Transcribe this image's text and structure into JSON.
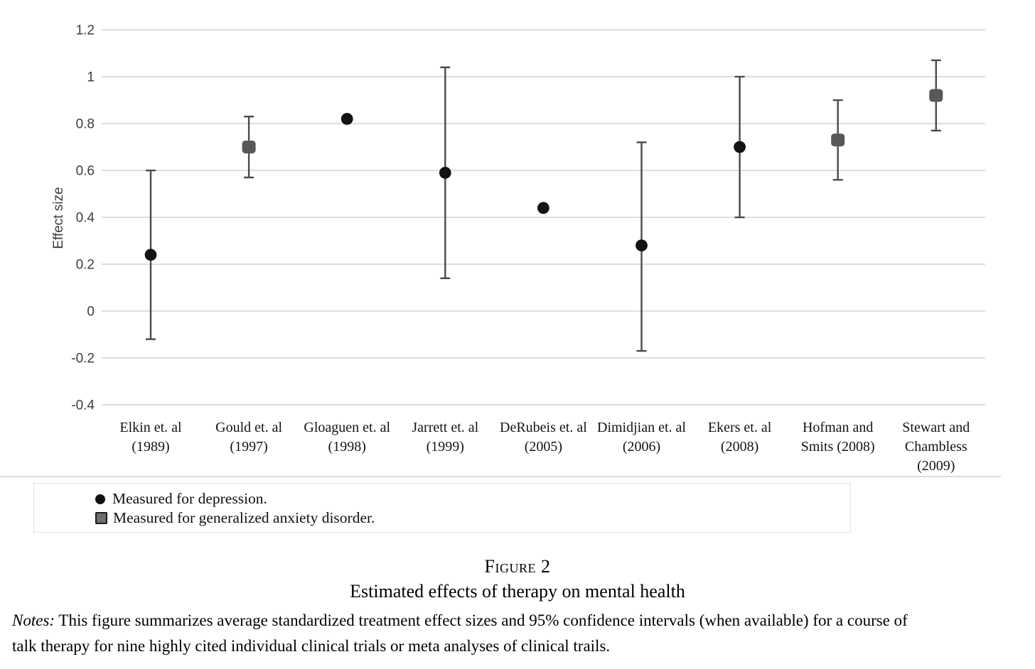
{
  "chart_data": {
    "type": "scatter",
    "title": "",
    "xlabel": "",
    "ylabel": "Effect size",
    "ylim": [
      -0.4,
      1.2
    ],
    "yticks": [
      1.2,
      1,
      0.8,
      0.6,
      0.4,
      0.2,
      0,
      -0.2,
      -0.4
    ],
    "ytick_labels": [
      "1.2",
      "1",
      "0.8",
      "0.6",
      "0.4",
      "0.2",
      "0",
      "-0.2",
      "-0.4"
    ],
    "grid": true,
    "legend_position": "bottom-left box",
    "points": [
      {
        "label_lines": [
          "Elkin et. al",
          "(1989)"
        ],
        "value": 0.24,
        "ci_low": -0.12,
        "ci_high": 0.6,
        "marker": "circle",
        "group": "depression"
      },
      {
        "label_lines": [
          "Gould et. al",
          "(1997)"
        ],
        "value": 0.7,
        "ci_low": 0.57,
        "ci_high": 0.83,
        "marker": "square",
        "group": "generalized anxiety disorder"
      },
      {
        "label_lines": [
          "Gloaguen et. al",
          "(1998)"
        ],
        "value": 0.82,
        "ci_low": null,
        "ci_high": null,
        "marker": "circle",
        "group": "depression"
      },
      {
        "label_lines": [
          "Jarrett et. al",
          "(1999)"
        ],
        "value": 0.59,
        "ci_low": 0.14,
        "ci_high": 1.04,
        "marker": "circle",
        "group": "depression"
      },
      {
        "label_lines": [
          "DeRubeis et. al",
          "(2005)"
        ],
        "value": 0.44,
        "ci_low": null,
        "ci_high": null,
        "marker": "circle",
        "group": "depression"
      },
      {
        "label_lines": [
          "Dimidjian et. al",
          "(2006)"
        ],
        "value": 0.28,
        "ci_low": -0.17,
        "ci_high": 0.72,
        "marker": "circle",
        "group": "depression"
      },
      {
        "label_lines": [
          "Ekers et. al",
          "(2008)"
        ],
        "value": 0.7,
        "ci_low": 0.4,
        "ci_high": 1.0,
        "marker": "circle",
        "group": "depression"
      },
      {
        "label_lines": [
          "Hofman and",
          "Smits (2008)"
        ],
        "value": 0.73,
        "ci_low": 0.56,
        "ci_high": 0.9,
        "marker": "square",
        "group": "generalized anxiety disorder"
      },
      {
        "label_lines": [
          "Stewart and",
          "Chambless",
          "(2009)"
        ],
        "value": 0.92,
        "ci_low": 0.77,
        "ci_high": 1.07,
        "marker": "square",
        "group": "generalized anxiety disorder"
      }
    ],
    "colors": {
      "circle_marker": "#131313",
      "square_marker": "#57585a",
      "error_bar": "#4a4a4a",
      "gridline": "#d9d9d9"
    }
  },
  "legend": {
    "items": [
      {
        "marker": "circle",
        "label": "Measured for depression."
      },
      {
        "marker": "square",
        "label": "Measured for generalized anxiety disorder."
      }
    ]
  },
  "caption": {
    "figure_label": "Figure 2",
    "title": "Estimated effects of therapy on mental health",
    "notes_prefix": "Notes:",
    "notes_text": " This figure summarizes average standardized treatment effect sizes and 95% confidence intervals (when available) for a course of\ntalk therapy for nine highly cited individual clinical trials or meta analyses of clinical trails."
  }
}
